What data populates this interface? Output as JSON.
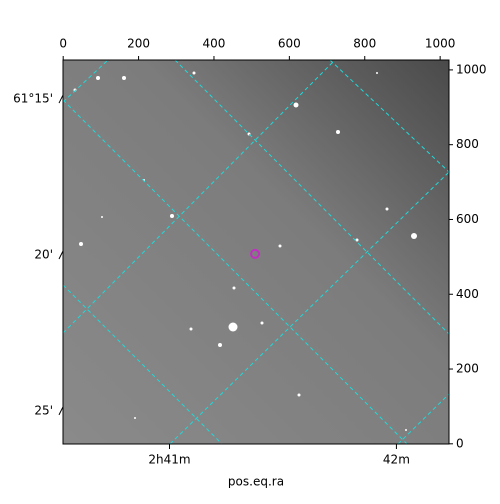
{
  "chart_data": {
    "type": "image",
    "xlabel": "pos.eq.ra",
    "xlim": [
      -0.5,
      1023.5
    ],
    "ylim": [
      -0.5,
      1026.5
    ],
    "top_xticks": [
      0,
      200,
      400,
      600,
      800,
      1000
    ],
    "right_yticks": [
      0,
      200,
      400,
      600,
      800,
      1000
    ],
    "bottom_xticks": [
      {
        "value": 282,
        "label": "2h41m"
      },
      {
        "value": 884,
        "label": "42m"
      }
    ],
    "left_yticks": [
      {
        "value": 922,
        "label": "61°15'"
      },
      {
        "value": 505,
        "label": "20'"
      },
      {
        "value": 88,
        "label": "25'"
      }
    ],
    "points": {
      "x": [
        509
      ],
      "y": [
        508
      ],
      "color": "#c030c0"
    }
  }
}
